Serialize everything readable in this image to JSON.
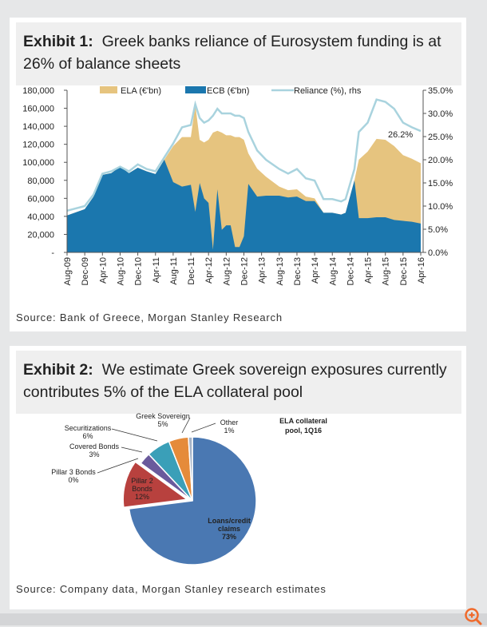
{
  "exhibit1": {
    "title_bold": "Exhibit 1:",
    "title_text": "Greek banks reliance of Eurosystem funding is at 26% of balance sheets",
    "source": "Source: Bank of Greece, Morgan Stanley Research"
  },
  "exhibit2": {
    "title_bold": "Exhibit 2:",
    "title_text": "We estimate Greek sovereign exposures currently contributes 5% of the ELA collateral pool",
    "source": "Source: Company data, Morgan Stanley research estimates"
  },
  "chart_data": [
    {
      "type": "area",
      "stacked": true,
      "legend_placement": "top",
      "grid": false,
      "x": [
        "Aug-09",
        "Dec-09",
        "Feb-10",
        "Apr-10",
        "Jun-10",
        "Aug-10",
        "Oct-10",
        "Dec-10",
        "Feb-11",
        "Apr-11",
        "Jun-11",
        "Aug-11",
        "Oct-11",
        "Dec-11",
        "Jan-12",
        "Feb-12",
        "Mar-12",
        "Apr-12",
        "May-12",
        "Jun-12",
        "Jul-12",
        "Aug-12",
        "Sep-12",
        "Oct-12",
        "Nov-12",
        "Dec-12",
        "Jan-13",
        "Mar-13",
        "May-13",
        "Aug-13",
        "Oct-13",
        "Dec-13",
        "Feb-14",
        "Apr-14",
        "Jun-14",
        "Aug-14",
        "Oct-14",
        "Nov-14",
        "Jan-15",
        "Feb-15",
        "Apr-15",
        "Jun-15",
        "Aug-15",
        "Oct-15",
        "Dec-15",
        "Feb-16",
        "Apr-16"
      ],
      "series": [
        {
          "name": "ELA (€'bn)",
          "axis": "left",
          "color": "#e6c47f",
          "unit": "thousand €bn scale",
          "values": [
            0,
            0,
            0,
            0,
            0,
            0,
            0,
            0,
            0,
            0,
            0,
            40,
            55,
            53,
            119,
            48,
            62,
            70,
            130,
            65,
            108,
            100,
            100,
            122,
            122,
            107,
            34,
            31,
            21,
            10,
            8,
            8,
            5,
            3,
            0,
            0,
            0,
            0,
            0,
            65,
            74,
            87,
            86,
            82,
            73,
            70,
            67
          ]
        },
        {
          "name": "ECB (€'bn)",
          "axis": "left",
          "color": "#1b77ae",
          "values": [
            41,
            48,
            62,
            86,
            88,
            95,
            88,
            94,
            90,
            87,
            103,
            78,
            73,
            75,
            45,
            77,
            60,
            55,
            3,
            70,
            25,
            30,
            30,
            6,
            6,
            18,
            76,
            62,
            63,
            63,
            61,
            62,
            57,
            57,
            44,
            44,
            42,
            44,
            80,
            38,
            38,
            39,
            39,
            36,
            35,
            34,
            32
          ]
        },
        {
          "name": "Reliance (%), rhs",
          "axis": "right",
          "type": "line",
          "color": "#a9d3de",
          "values": [
            9,
            10,
            12.5,
            17,
            17.5,
            18.5,
            17.5,
            19,
            18,
            17.5,
            20.5,
            23.5,
            27,
            27.5,
            32,
            29,
            28,
            28.5,
            29.5,
            31,
            30,
            30,
            30,
            29.5,
            29.5,
            29,
            26,
            22,
            20,
            18,
            17,
            18,
            16,
            15.5,
            11.5,
            11.5,
            11,
            11.5,
            18,
            26,
            28,
            33,
            32.5,
            31,
            28,
            27,
            26.2
          ]
        }
      ],
      "left_values_note_unit": "values in thousands",
      "yaxis_left": {
        "ticks": [
          "-",
          "20,000",
          "40,000",
          "60,000",
          "80,000",
          "100,000",
          "120,000",
          "140,000",
          "160,000",
          "180,000"
        ],
        "range": [
          0,
          180000
        ]
      },
      "yaxis_right": {
        "ticks": [
          "0.0%",
          "5.0%",
          "10.0%",
          "15.0%",
          "20.0%",
          "25.0%",
          "30.0%",
          "35.0%"
        ],
        "range": [
          0,
          35
        ]
      },
      "xaxis_ticks": [
        "Aug-09",
        "Dec-09",
        "Apr-10",
        "Aug-10",
        "Dec-10",
        "Apr-11",
        "Aug-11",
        "Dec-11",
        "Apr-12",
        "Aug-12",
        "Dec-12",
        "Apr-13",
        "Aug-13",
        "Dec-13",
        "Apr-14",
        "Aug-14",
        "Dec-14",
        "Apr-15",
        "Aug-15",
        "Dec-15",
        "Apr-16"
      ],
      "annotation": "26.2%"
    },
    {
      "type": "pie",
      "title": "ELA collateral pool, 1Q16",
      "title_lines": [
        "ELA collateral",
        "pool, 1Q16"
      ],
      "slices": [
        {
          "label": "Loans/credit claims",
          "lines": [
            "Loans/credit",
            "claims"
          ],
          "value": 73,
          "pct": "73%",
          "color": "#4a78b2"
        },
        {
          "label": "Pillar 2 Bonds",
          "lines": [
            "Pillar 2",
            "Bonds"
          ],
          "value": 12,
          "pct": "12%",
          "color": "#b8413e",
          "exploded": true
        },
        {
          "label": "Pillar 3 Bonds",
          "lines": [
            "Pillar 3 Bonds"
          ],
          "value": 0,
          "pct": "0%",
          "color": "#8aa650"
        },
        {
          "label": "Covered Bonds",
          "lines": [
            "Covered Bonds"
          ],
          "value": 3,
          "pct": "3%",
          "color": "#6a5a9c"
        },
        {
          "label": "Securitizations",
          "lines": [
            "Securitizations"
          ],
          "value": 6,
          "pct": "6%",
          "color": "#3a9fb8"
        },
        {
          "label": "Greek Sovereign",
          "lines": [
            "Greek Sovereign"
          ],
          "value": 5,
          "pct": "5%",
          "color": "#e58b3a"
        },
        {
          "label": "Other",
          "lines": [
            "Other"
          ],
          "value": 1,
          "pct": "1%",
          "color": "#a5b3c7"
        }
      ]
    }
  ]
}
